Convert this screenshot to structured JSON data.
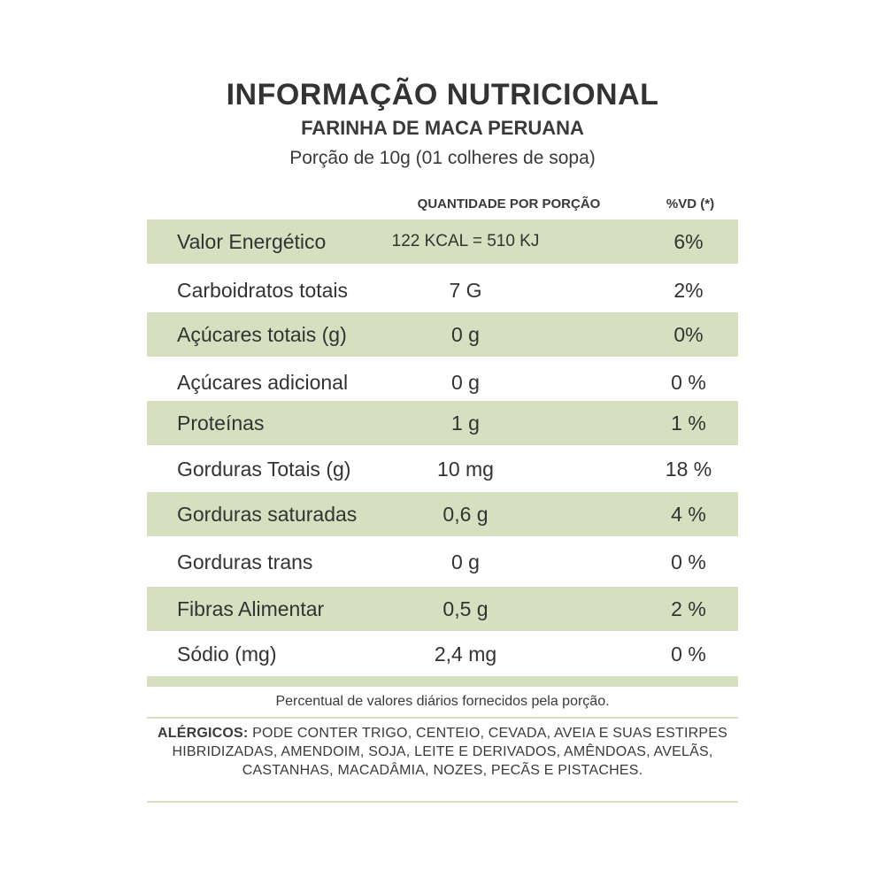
{
  "header": {
    "title": "INFORMAÇÃO NUTRICIONAL",
    "product": "FARINHA DE MACA PERUANA",
    "portion": "Porção de 10g (01 colheres de sopa)"
  },
  "columns": {
    "quantity": "QUANTIDADE POR PORÇÃO",
    "dv": "%VD (*)"
  },
  "rows": [
    {
      "nutrient": "Valor Energético",
      "quantity": "122 KCAL = 510 KJ",
      "dv": "6%"
    },
    {
      "nutrient": "Carboidratos totais",
      "quantity": "7 G",
      "dv": "2%"
    },
    {
      "nutrient": "Açúcares totais (g)",
      "quantity": "0 g",
      "dv": "0%"
    },
    {
      "nutrient": "Açúcares adicional",
      "quantity": "0 g",
      "dv": "0 %"
    },
    {
      "nutrient": "Proteínas",
      "quantity": "1 g",
      "dv": "1 %"
    },
    {
      "nutrient": "Gorduras Totais (g)",
      "quantity": "10 mg",
      "dv": "18 %"
    },
    {
      "nutrient": "Gorduras saturadas",
      "quantity": "0,6 g",
      "dv": "4 %"
    },
    {
      "nutrient": "Gorduras trans",
      "quantity": "0 g",
      "dv": "0 %"
    },
    {
      "nutrient": "Fibras Alimentar",
      "quantity": "0,5 g",
      "dv": "2 %"
    },
    {
      "nutrient": "Sódio (mg)",
      "quantity": "2,4 mg",
      "dv": "0 %"
    }
  ],
  "footnote": "Percentual de valores diários fornecidos pela porção.",
  "allergens": {
    "label": "ALÉRGICOS:",
    "text": "PODE CONTER TRIGO, CENTEIO, CEVADA, AVEIA E SUAS ESTIRPES HIBRIDIZADAS, AMENDOIM, SOJA, LEITE E DERIVADOS, AMÊNDOAS, AVELÃS, CASTANHAS, MACADÂMIA, NOZES, PECÃS E PISTACHES."
  },
  "colors": {
    "shade": "#d6dfbf",
    "text": "#333333"
  }
}
